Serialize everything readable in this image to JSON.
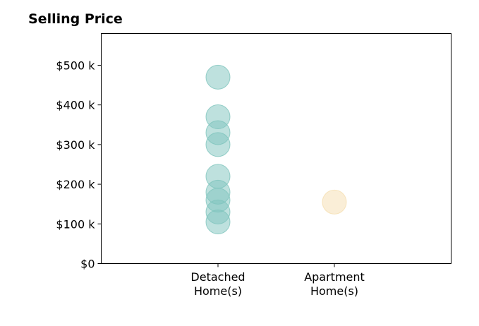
{
  "chart_data": {
    "type": "scatter",
    "title": "Selling Price",
    "xlabel": "",
    "ylabel": "",
    "categories": [
      [
        "Detached",
        "Home(s)"
      ],
      [
        "Apartment",
        "Home(s)"
      ]
    ],
    "ylim": [
      0,
      580000
    ],
    "yticks": [
      {
        "value": 0,
        "label": "$0"
      },
      {
        "value": 100000,
        "label": "$100 k"
      },
      {
        "value": 200000,
        "label": "$200 k"
      },
      {
        "value": 300000,
        "label": "$300 k"
      },
      {
        "value": 400000,
        "label": "$400 k"
      },
      {
        "value": 500000,
        "label": "$500 k"
      }
    ],
    "series": [
      {
        "color": "#7ec4bd",
        "category_index": 0,
        "values": [
          470000,
          370000,
          330000,
          300000,
          220000,
          180000,
          160000,
          130000,
          105000
        ]
      },
      {
        "color": "#f5deb0",
        "category_index": 1,
        "values": [
          155000
        ]
      }
    ],
    "grid": false
  }
}
